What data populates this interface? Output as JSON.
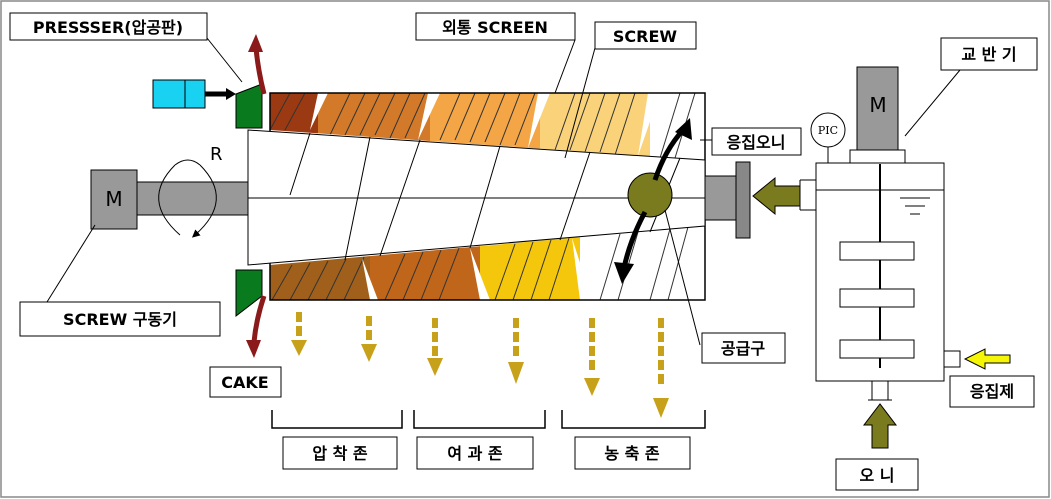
{
  "labels": {
    "presser": "PRESSSER(압공판)",
    "outer_screen": "외통 SCREEN",
    "screw": "SCREW",
    "agitator": "교 반 기",
    "flocculated_sludge": "응집오니",
    "rotation": "R",
    "motor_left": "M",
    "motor_right": "M",
    "pic": "PIC",
    "screw_drive": "SCREW 구동기",
    "cake": "CAKE",
    "supply_port": "공급구",
    "flocculant": "응집제",
    "sludge": "오 니",
    "zone_compression": "압 착 존",
    "zone_filtration": "여 과 존",
    "zone_concentration": "농 축 존"
  },
  "colors": {
    "zone_dark": "#9b3a12",
    "zone_orange": "#d27a2a",
    "zone_light_orange": "#f4a546",
    "zone_pale": "#f9d27a",
    "zone_brown": "#a0601c",
    "zone_yellow": "#f4c70d",
    "olive": "#7a7a1e",
    "cyan": "#19d1f0",
    "green": "#0a7a1e",
    "maroon": "#8b1a1a",
    "gray": "#999999",
    "dashed_arrow": "#c8a11a"
  }
}
